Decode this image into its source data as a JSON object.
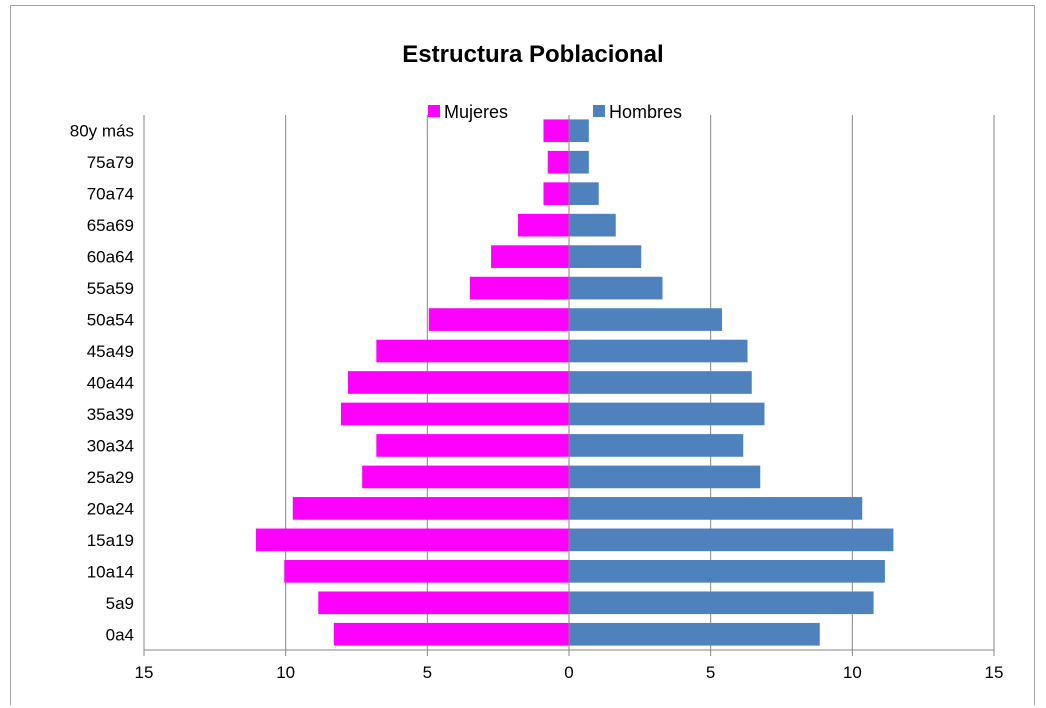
{
  "chart_data": {
    "type": "bar",
    "orientation": "horizontal-population-pyramid",
    "title": "Estructura Poblacional",
    "categories": [
      "80y más",
      "75a79",
      "70a74",
      "65a69",
      "60a64",
      "55a59",
      "50a54",
      "45a49",
      "40a44",
      "35a39",
      "30a34",
      "25a29",
      "20a24",
      "15a19",
      "10a14",
      "5a9",
      "0a4"
    ],
    "series": [
      {
        "name": "Mujeres",
        "color": "#ff00ff",
        "direction": "left",
        "values": [
          0.9,
          0.75,
          0.9,
          1.8,
          2.75,
          3.5,
          4.95,
          6.8,
          7.8,
          8.05,
          6.8,
          7.3,
          9.75,
          11.05,
          10.05,
          8.85,
          8.3
        ]
      },
      {
        "name": "Hombres",
        "color": "#4f81bd",
        "direction": "right",
        "values": [
          0.7,
          0.7,
          1.05,
          1.65,
          2.55,
          3.3,
          5.4,
          6.3,
          6.45,
          6.9,
          6.15,
          6.75,
          10.35,
          11.45,
          11.15,
          10.75,
          8.85
        ]
      }
    ],
    "xlim": [
      -15,
      15
    ],
    "x_ticks": [
      -15,
      -10,
      -5,
      0,
      5,
      10,
      15
    ],
    "x_tick_labels": [
      "15",
      "10",
      "5",
      "0",
      "5",
      "10",
      "15"
    ],
    "grid": "vertical",
    "legend_position": "top-center"
  }
}
